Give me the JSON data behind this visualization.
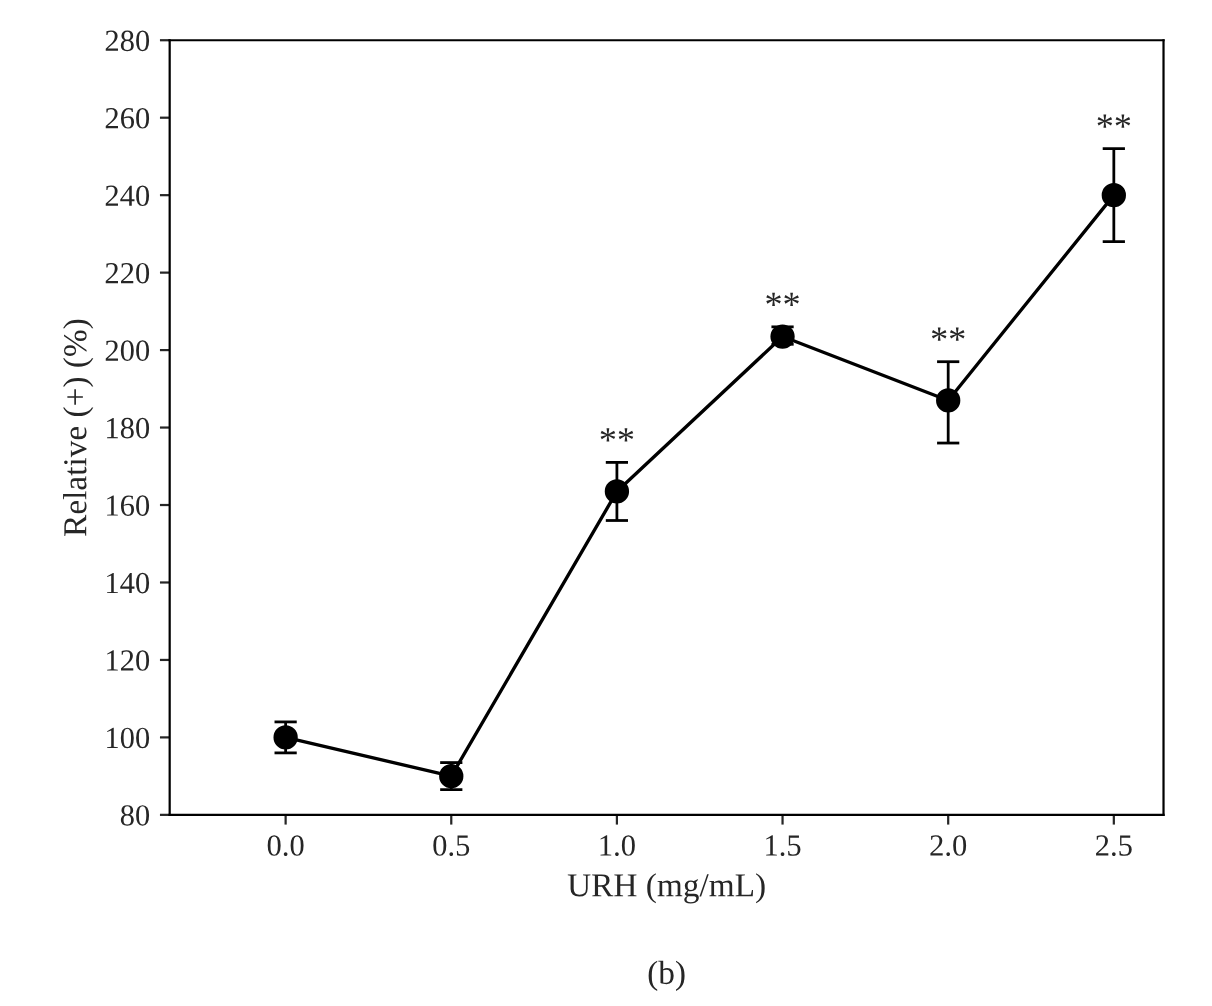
{
  "chart_data": {
    "type": "line",
    "xlabel": "URH (mg/mL)",
    "ylabel": "Relative (+) (%)",
    "x": [
      0.0,
      0.5,
      1.0,
      1.5,
      2.0,
      2.5
    ],
    "series": [
      {
        "color": "#000000",
        "values": [
          100,
          90,
          163.5,
          203.5,
          187,
          240
        ],
        "errors": [
          [
            96,
            104
          ],
          [
            86.5,
            93.5
          ],
          [
            156,
            171
          ],
          [
            201.5,
            206
          ],
          [
            176,
            197
          ],
          [
            228,
            252
          ]
        ]
      }
    ],
    "marker": "circle",
    "line_style": "solid",
    "xlim": [
      -0.35,
      2.65
    ],
    "xticks": [
      {
        "value": 0.0,
        "label": "0.0"
      },
      {
        "value": 0.5,
        "label": "0.5"
      },
      {
        "value": 1.0,
        "label": "1.0"
      },
      {
        "value": 1.5,
        "label": "1.5"
      },
      {
        "value": 2.0,
        "label": "2.0"
      },
      {
        "value": 2.5,
        "label": "2.5"
      }
    ],
    "ylim": [
      80,
      280
    ],
    "yticks": [
      80,
      100,
      120,
      140,
      160,
      180,
      200,
      220,
      240,
      260,
      280
    ],
    "grid": false,
    "annotations": [
      {
        "text": "**",
        "x": 1.0,
        "y": 171
      },
      {
        "text": "**",
        "x": 1.5,
        "y": 206
      },
      {
        "text": "**",
        "x": 2.0,
        "y": 197
      },
      {
        "text": "**",
        "x": 2.5,
        "y": 252
      },
      "(b)"
    ]
  }
}
